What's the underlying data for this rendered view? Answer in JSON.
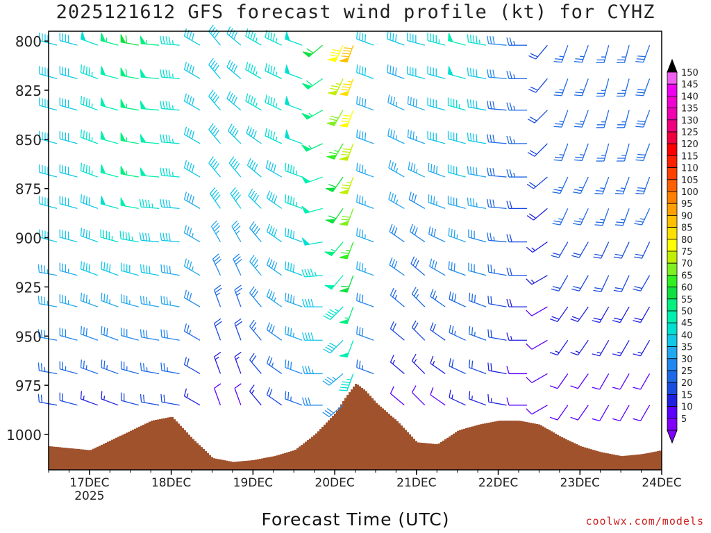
{
  "chart_data": {
    "type": "wind_barb_profile",
    "title": "2025121612 GFS forecast wind profile (kt) for CYHZ",
    "xlabel": "Forecast Time (UTC)",
    "ylabel": "",
    "credit": "coolwx.com/models",
    "x_ticks": [
      "17DEC",
      "18DEC",
      "19DEC",
      "20DEC",
      "21DEC",
      "22DEC",
      "23DEC",
      "24DEC"
    ],
    "x_year_label": "2025",
    "y_ticks": [
      800,
      825,
      850,
      875,
      900,
      925,
      950,
      975,
      1000
    ],
    "ylim": [
      795,
      1018
    ],
    "xlim_days": [
      16.5,
      24.0
    ],
    "y_inverted": true,
    "colorbar": {
      "levels": [
        5,
        10,
        15,
        20,
        25,
        30,
        35,
        40,
        45,
        50,
        55,
        60,
        65,
        70,
        75,
        80,
        85,
        90,
        95,
        100,
        105,
        110,
        115,
        120,
        125,
        130,
        135,
        140,
        145,
        150
      ],
      "colors": [
        "#8000ff",
        "#5a00ff",
        "#2020e0",
        "#1a4be0",
        "#1e6ae6",
        "#2088f0",
        "#22a8f0",
        "#10c8e8",
        "#00e0d0",
        "#00f0b0",
        "#00f080",
        "#10e040",
        "#30f020",
        "#80f020",
        "#c0f000",
        "#ffff00",
        "#ffe000",
        "#ffc000",
        "#ffa000",
        "#ff8000",
        "#ff6000",
        "#ff4000",
        "#ff2000",
        "#ff0000",
        "#f00040",
        "#f00080",
        "#f000b0",
        "#f000d0",
        "#f000f0",
        "#f060f0"
      ],
      "extends": "both"
    },
    "surface_pressure": {
      "times": [
        16.5,
        16.75,
        17.0,
        17.25,
        17.5,
        17.75,
        18.0,
        18.25,
        18.5,
        18.75,
        19.0,
        19.25,
        19.5,
        19.75,
        20.0,
        20.125,
        20.25,
        20.375,
        20.5,
        20.75,
        21.0,
        21.25,
        21.5,
        21.75,
        22.0,
        22.25,
        22.5,
        22.75,
        23.0,
        23.25,
        23.5,
        23.75,
        24.0
      ],
      "values": [
        1006,
        1007,
        1008,
        1003,
        998,
        993,
        991,
        1002,
        1012,
        1014,
        1013,
        1011,
        1008,
        1000,
        989,
        981,
        974,
        978,
        984,
        993,
        1004,
        1005,
        998,
        995,
        993,
        993,
        995,
        1001,
        1006,
        1009,
        1011,
        1010,
        1008
      ],
      "color": "#a0522d"
    },
    "wind_series": [
      {
        "time": 16.5,
        "speeds": [
          40,
          40,
          40,
          40,
          40,
          40,
          40,
          35,
          35,
          30,
          25,
          20
        ],
        "dirs": [
          285,
          285,
          285,
          285,
          285,
          285,
          285,
          280,
          280,
          280,
          280,
          280
        ]
      },
      {
        "time": 16.75,
        "speeds": [
          42,
          42,
          42,
          42,
          42,
          42,
          40,
          35,
          35,
          30,
          25,
          20
        ],
        "dirs": [
          285,
          285,
          285,
          285,
          285,
          285,
          285,
          285,
          285,
          285,
          285,
          285
        ]
      },
      {
        "time": 17.0,
        "speeds": [
          48,
          45,
          45,
          45,
          45,
          42,
          40,
          40,
          35,
          30,
          25,
          15
        ],
        "dirs": [
          290,
          290,
          290,
          290,
          290,
          290,
          290,
          290,
          290,
          290,
          290,
          290
        ]
      },
      {
        "time": 17.25,
        "speeds": [
          55,
          52,
          50,
          50,
          50,
          48,
          45,
          40,
          35,
          30,
          25,
          15
        ],
        "dirs": [
          285,
          285,
          285,
          285,
          285,
          285,
          285,
          290,
          290,
          290,
          290,
          290
        ]
      },
      {
        "time": 17.5,
        "speeds": [
          60,
          58,
          55,
          55,
          55,
          50,
          45,
          40,
          35,
          30,
          25,
          20
        ],
        "dirs": [
          280,
          280,
          280,
          280,
          280,
          280,
          280,
          285,
          285,
          285,
          285,
          285
        ]
      },
      {
        "time": 17.75,
        "speeds": [
          55,
          52,
          50,
          50,
          50,
          45,
          40,
          40,
          35,
          30,
          25,
          20
        ],
        "dirs": [
          275,
          275,
          275,
          275,
          275,
          275,
          275,
          280,
          280,
          280,
          280,
          280
        ]
      },
      {
        "time": 18.0,
        "speeds": [
          45,
          45,
          45,
          45,
          45,
          42,
          40,
          38,
          35,
          30,
          25,
          20
        ],
        "dirs": [
          275,
          275,
          275,
          275,
          275,
          275,
          275,
          280,
          280,
          280,
          280,
          280
        ]
      },
      {
        "time": 18.25,
        "speeds": [
          40,
          40,
          40,
          40,
          40,
          38,
          35,
          35,
          30,
          25,
          20,
          15
        ],
        "dirs": [
          300,
          300,
          300,
          300,
          300,
          300,
          300,
          300,
          300,
          300,
          300,
          300
        ]
      },
      {
        "time": 18.5,
        "speeds": [
          40,
          40,
          40,
          40,
          40,
          40,
          35,
          30,
          25,
          20,
          15,
          10
        ],
        "dirs": [
          320,
          320,
          320,
          320,
          320,
          325,
          330,
          335,
          340,
          340,
          340,
          340
        ]
      },
      {
        "time": 18.75,
        "speeds": [
          42,
          42,
          42,
          40,
          40,
          40,
          35,
          30,
          25,
          20,
          15,
          10
        ],
        "dirs": [
          310,
          310,
          310,
          315,
          320,
          325,
          330,
          335,
          340,
          340,
          340,
          340
        ]
      },
      {
        "time": 19.0,
        "speeds": [
          45,
          45,
          45,
          42,
          40,
          40,
          38,
          35,
          30,
          25,
          20,
          15
        ],
        "dirs": [
          300,
          300,
          300,
          305,
          310,
          315,
          320,
          320,
          320,
          320,
          320,
          320
        ]
      },
      {
        "time": 19.25,
        "speeds": [
          45,
          45,
          45,
          45,
          42,
          40,
          40,
          38,
          35,
          30,
          25,
          20
        ],
        "dirs": [
          295,
          295,
          295,
          295,
          300,
          305,
          305,
          305,
          305,
          305,
          305,
          305
        ]
      },
      {
        "time": 19.5,
        "speeds": [
          48,
          48,
          48,
          48,
          45,
          45,
          42,
          40,
          38,
          35,
          30,
          25
        ],
        "dirs": [
          290,
          290,
          290,
          290,
          290,
          290,
          290,
          290,
          290,
          290,
          290,
          290
        ]
      },
      {
        "time": 19.75,
        "speeds": [
          60,
          58,
          55,
          55,
          52,
          50,
          48,
          45,
          42,
          40,
          35,
          30
        ],
        "dirs": [
          230,
          235,
          240,
          245,
          250,
          255,
          260,
          265,
          270,
          270,
          270,
          270
        ]
      },
      {
        "time": 20.0,
        "speeds": [
          80,
          75,
          70,
          65,
          62,
          60,
          55,
          50,
          45,
          40,
          35,
          30
        ],
        "dirs": [
          205,
          205,
          210,
          210,
          215,
          215,
          220,
          220,
          225,
          225,
          230,
          230
        ]
      },
      {
        "time": 20.125,
        "speeds": [
          90,
          85,
          80,
          78,
          75,
          70,
          65,
          60,
          55,
          50,
          45,
          40
        ],
        "dirs": [
          200,
          200,
          200,
          200,
          200,
          200,
          200,
          200,
          200,
          200,
          200,
          200
        ]
      },
      {
        "time": 20.375,
        "speeds": [
          40,
          40,
          38,
          38,
          35,
          35,
          35,
          35,
          30,
          30,
          25,
          20
        ],
        "dirs": [
          290,
          290,
          290,
          290,
          290,
          290,
          290,
          290,
          290,
          290,
          290,
          290
        ]
      },
      {
        "time": 20.75,
        "speeds": [
          40,
          38,
          35,
          35,
          35,
          35,
          30,
          30,
          25,
          20,
          15,
          10
        ],
        "dirs": [
          290,
          290,
          295,
          295,
          300,
          300,
          305,
          305,
          310,
          310,
          310,
          310
        ]
      },
      {
        "time": 21.0,
        "speeds": [
          42,
          40,
          38,
          35,
          35,
          32,
          30,
          28,
          25,
          20,
          15,
          10
        ],
        "dirs": [
          285,
          285,
          290,
          290,
          295,
          300,
          305,
          310,
          315,
          315,
          315,
          315
        ]
      },
      {
        "time": 21.25,
        "speeds": [
          45,
          42,
          40,
          40,
          38,
          35,
          32,
          30,
          25,
          20,
          15,
          10
        ],
        "dirs": [
          285,
          285,
          285,
          285,
          290,
          290,
          295,
          300,
          305,
          305,
          305,
          305
        ]
      },
      {
        "time": 21.5,
        "speeds": [
          50,
          48,
          45,
          42,
          40,
          38,
          35,
          32,
          28,
          25,
          20,
          15
        ],
        "dirs": [
          285,
          285,
          285,
          285,
          285,
          285,
          290,
          290,
          295,
          295,
          295,
          295
        ]
      },
      {
        "time": 21.75,
        "speeds": [
          45,
          42,
          40,
          40,
          38,
          35,
          32,
          30,
          28,
          25,
          20,
          15
        ],
        "dirs": [
          280,
          280,
          280,
          280,
          280,
          280,
          285,
          285,
          290,
          290,
          290,
          290
        ]
      },
      {
        "time": 22.0,
        "speeds": [
          30,
          30,
          28,
          28,
          28,
          28,
          25,
          25,
          22,
          20,
          18,
          15
        ],
        "dirs": [
          275,
          275,
          275,
          275,
          275,
          275,
          275,
          280,
          280,
          280,
          280,
          280
        ]
      },
      {
        "time": 22.25,
        "speeds": [
          25,
          25,
          25,
          25,
          25,
          22,
          20,
          20,
          18,
          15,
          12,
          10
        ],
        "dirs": [
          270,
          270,
          270,
          270,
          270,
          270,
          270,
          270,
          270,
          270,
          270,
          270
        ]
      },
      {
        "time": 22.5,
        "speeds": [
          20,
          20,
          20,
          20,
          20,
          18,
          15,
          15,
          12,
          10,
          10,
          10
        ],
        "dirs": [
          220,
          220,
          225,
          225,
          230,
          230,
          235,
          240,
          240,
          240,
          240,
          240
        ]
      },
      {
        "time": 22.75,
        "speeds": [
          25,
          25,
          25,
          25,
          25,
          25,
          22,
          20,
          18,
          15,
          12,
          10
        ],
        "dirs": [
          200,
          200,
          200,
          200,
          205,
          205,
          210,
          210,
          215,
          215,
          215,
          215
        ]
      },
      {
        "time": 23.0,
        "speeds": [
          25,
          25,
          25,
          25,
          25,
          25,
          22,
          20,
          18,
          15,
          12,
          10
        ],
        "dirs": [
          200,
          200,
          200,
          200,
          205,
          205,
          210,
          210,
          215,
          215,
          215,
          215
        ]
      },
      {
        "time": 23.25,
        "speeds": [
          25,
          25,
          25,
          25,
          25,
          25,
          22,
          20,
          18,
          15,
          12,
          10
        ],
        "dirs": [
          195,
          195,
          195,
          195,
          200,
          200,
          205,
          205,
          210,
          210,
          210,
          210
        ]
      },
      {
        "time": 23.5,
        "speeds": [
          25,
          25,
          25,
          25,
          25,
          25,
          22,
          20,
          18,
          15,
          12,
          10
        ],
        "dirs": [
          195,
          195,
          195,
          195,
          200,
          200,
          205,
          205,
          210,
          210,
          210,
          210
        ]
      },
      {
        "time": 23.75,
        "speeds": [
          28,
          28,
          28,
          28,
          28,
          25,
          22,
          20,
          18,
          15,
          12,
          10
        ],
        "dirs": [
          200,
          200,
          200,
          200,
          200,
          205,
          205,
          210,
          210,
          210,
          210,
          210
        ]
      }
    ],
    "wind_levels": [
      800,
      817,
      833,
      850,
      867,
      883,
      900,
      917,
      933,
      950,
      967,
      983
    ]
  }
}
